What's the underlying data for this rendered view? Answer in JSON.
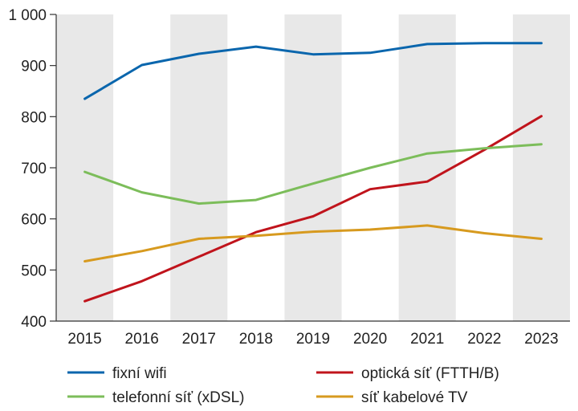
{
  "chart_data": {
    "type": "line",
    "title": "",
    "xlabel": "",
    "ylabel": "",
    "categories": [
      "2015",
      "2016",
      "2017",
      "2018",
      "2019",
      "2020",
      "2021",
      "2022",
      "2023"
    ],
    "ylim": [
      400,
      1000
    ],
    "yticks": [
      400,
      500,
      600,
      700,
      800,
      900,
      1000
    ],
    "ytick_labels": [
      "400",
      "500",
      "600",
      "700",
      "800",
      "900",
      "1 000"
    ],
    "grid": "alternating-year-bands",
    "band_color": "#e8e8e8",
    "legend_position": "bottom",
    "series": [
      {
        "name": "fixní wifi",
        "color": "#0a66ad",
        "values": [
          835,
          901,
          923,
          937,
          922,
          925,
          942,
          944,
          944
        ]
      },
      {
        "name": "optická síť (FTTH/B)",
        "color": "#c0141c",
        "values": [
          439,
          478,
          526,
          574,
          605,
          658,
          673,
          735,
          801
        ]
      },
      {
        "name": "telefonní síť (xDSL)",
        "color": "#7cbd5a",
        "values": [
          692,
          652,
          630,
          637,
          669,
          700,
          728,
          738,
          746
        ]
      },
      {
        "name": "síť kabelové TV",
        "color": "#d79a1f",
        "values": [
          517,
          537,
          561,
          567,
          575,
          579,
          587,
          572,
          561
        ]
      }
    ]
  }
}
